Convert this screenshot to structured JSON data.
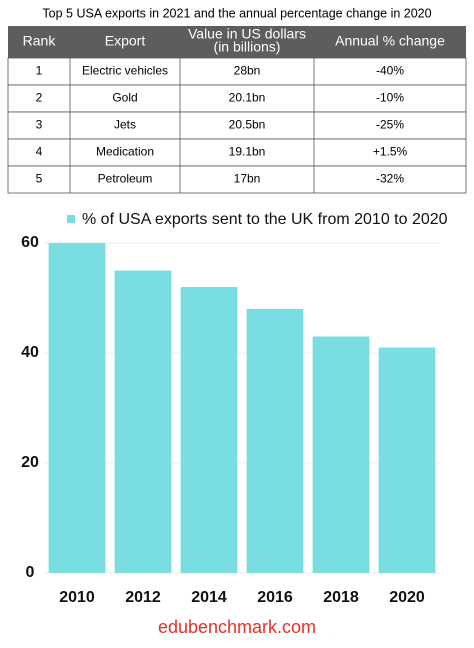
{
  "table": {
    "title": "Top 5 USA exports in 2021 and the annual percentage change in 2020",
    "header": [
      "Rank",
      "Export",
      [
        "Value in US dollars",
        "(in billions)"
      ],
      "Annual % change"
    ],
    "rows": [
      [
        "1",
        "Electric vehicles",
        "28bn",
        "-40%"
      ],
      [
        "2",
        "Gold",
        "20.1bn",
        "-10%"
      ],
      [
        "3",
        "Jets",
        "20.5bn",
        "-25%"
      ],
      [
        "4",
        "Medication",
        "19.1bn",
        "+1.5%"
      ],
      [
        "5",
        "Petroleum",
        "17bn",
        "-32%"
      ]
    ]
  },
  "chart_data": {
    "type": "bar",
    "legend": "% of USA exports sent to the UK from 2010 to 2020",
    "categories": [
      "2010",
      "2012",
      "2014",
      "2016",
      "2018",
      "2020"
    ],
    "values": [
      60,
      55,
      52,
      48,
      43,
      41
    ],
    "color": "#7adde1",
    "ylim": [
      0,
      60
    ],
    "yticks": [
      0,
      20,
      40,
      60
    ],
    "grid": true
  },
  "footer": "edubenchmark.com"
}
